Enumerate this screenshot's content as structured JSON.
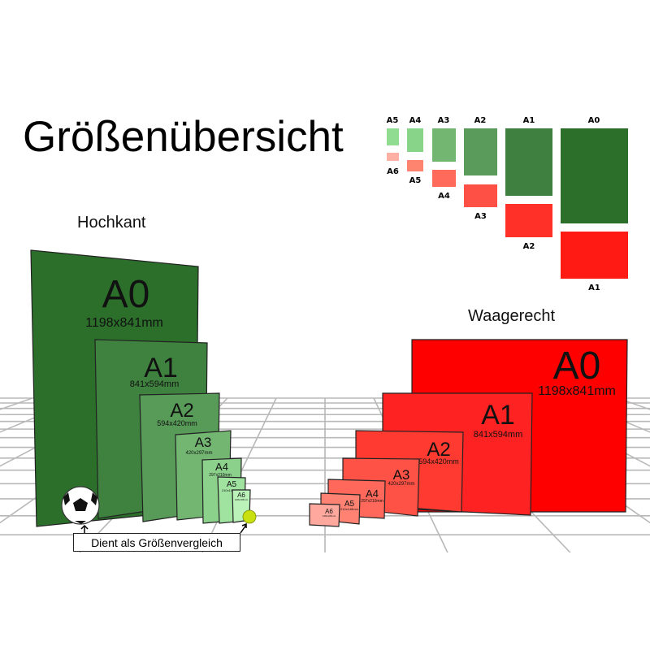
{
  "title": "Größenübersicht",
  "portrait_heading": "Hochkant",
  "landscape_heading": "Waagerecht",
  "comparison_note": "Dient als Größenvergleich",
  "hochkant": [
    {
      "label": "A0",
      "dims": "1198x841mm",
      "color": "#2b6f2b"
    },
    {
      "label": "A1",
      "dims": "841x594mm",
      "color": "#3f813f"
    },
    {
      "label": "A2",
      "dims": "594x420mm",
      "color": "#589a58"
    },
    {
      "label": "A3",
      "dims": "420x297mm",
      "color": "#72b672"
    },
    {
      "label": "A4",
      "dims": "297x210mm",
      "color": "#8bd08b"
    },
    {
      "label": "A5",
      "dims": "210x148mm",
      "color": "#a0e2a0"
    },
    {
      "label": "A6",
      "dims": "148x105mm",
      "color": "#baf2ba"
    }
  ],
  "waagerecht": [
    {
      "label": "A0",
      "dims": "1198x841mm",
      "color": "#ff0000"
    },
    {
      "label": "A1",
      "dims": "841x594mm",
      "color": "#ff2222"
    },
    {
      "label": "A2",
      "dims": "594x420mm",
      "color": "#ff3a30"
    },
    {
      "label": "A3",
      "dims": "420x297mm",
      "color": "#ff5246"
    },
    {
      "label": "A4",
      "dims": "297x210mm",
      "color": "#ff685a"
    },
    {
      "label": "A5",
      "dims": "210x148mm",
      "color": "#ff8272"
    },
    {
      "label": "A6",
      "dims": "148x105mm",
      "color": "#ffa89e"
    }
  ],
  "legend": {
    "green": [
      {
        "label": "A5",
        "color": "#90dc90"
      },
      {
        "label": "A4",
        "color": "#88d488"
      },
      {
        "label": "A3",
        "color": "#72b672"
      },
      {
        "label": "A2",
        "color": "#5a9a5a"
      },
      {
        "label": "A1",
        "color": "#3f7f3f"
      },
      {
        "label": "A0",
        "color": "#2b6f2b"
      }
    ],
    "red": [
      {
        "label": "A6",
        "color": "#ffb0a4"
      },
      {
        "label": "A5",
        "color": "#ff8470"
      },
      {
        "label": "A4",
        "color": "#ff6a5a"
      },
      {
        "label": "A3",
        "color": "#ff5046"
      },
      {
        "label": "A2",
        "color": "#ff3028"
      },
      {
        "label": "A1",
        "color": "#ff1a14"
      }
    ]
  }
}
